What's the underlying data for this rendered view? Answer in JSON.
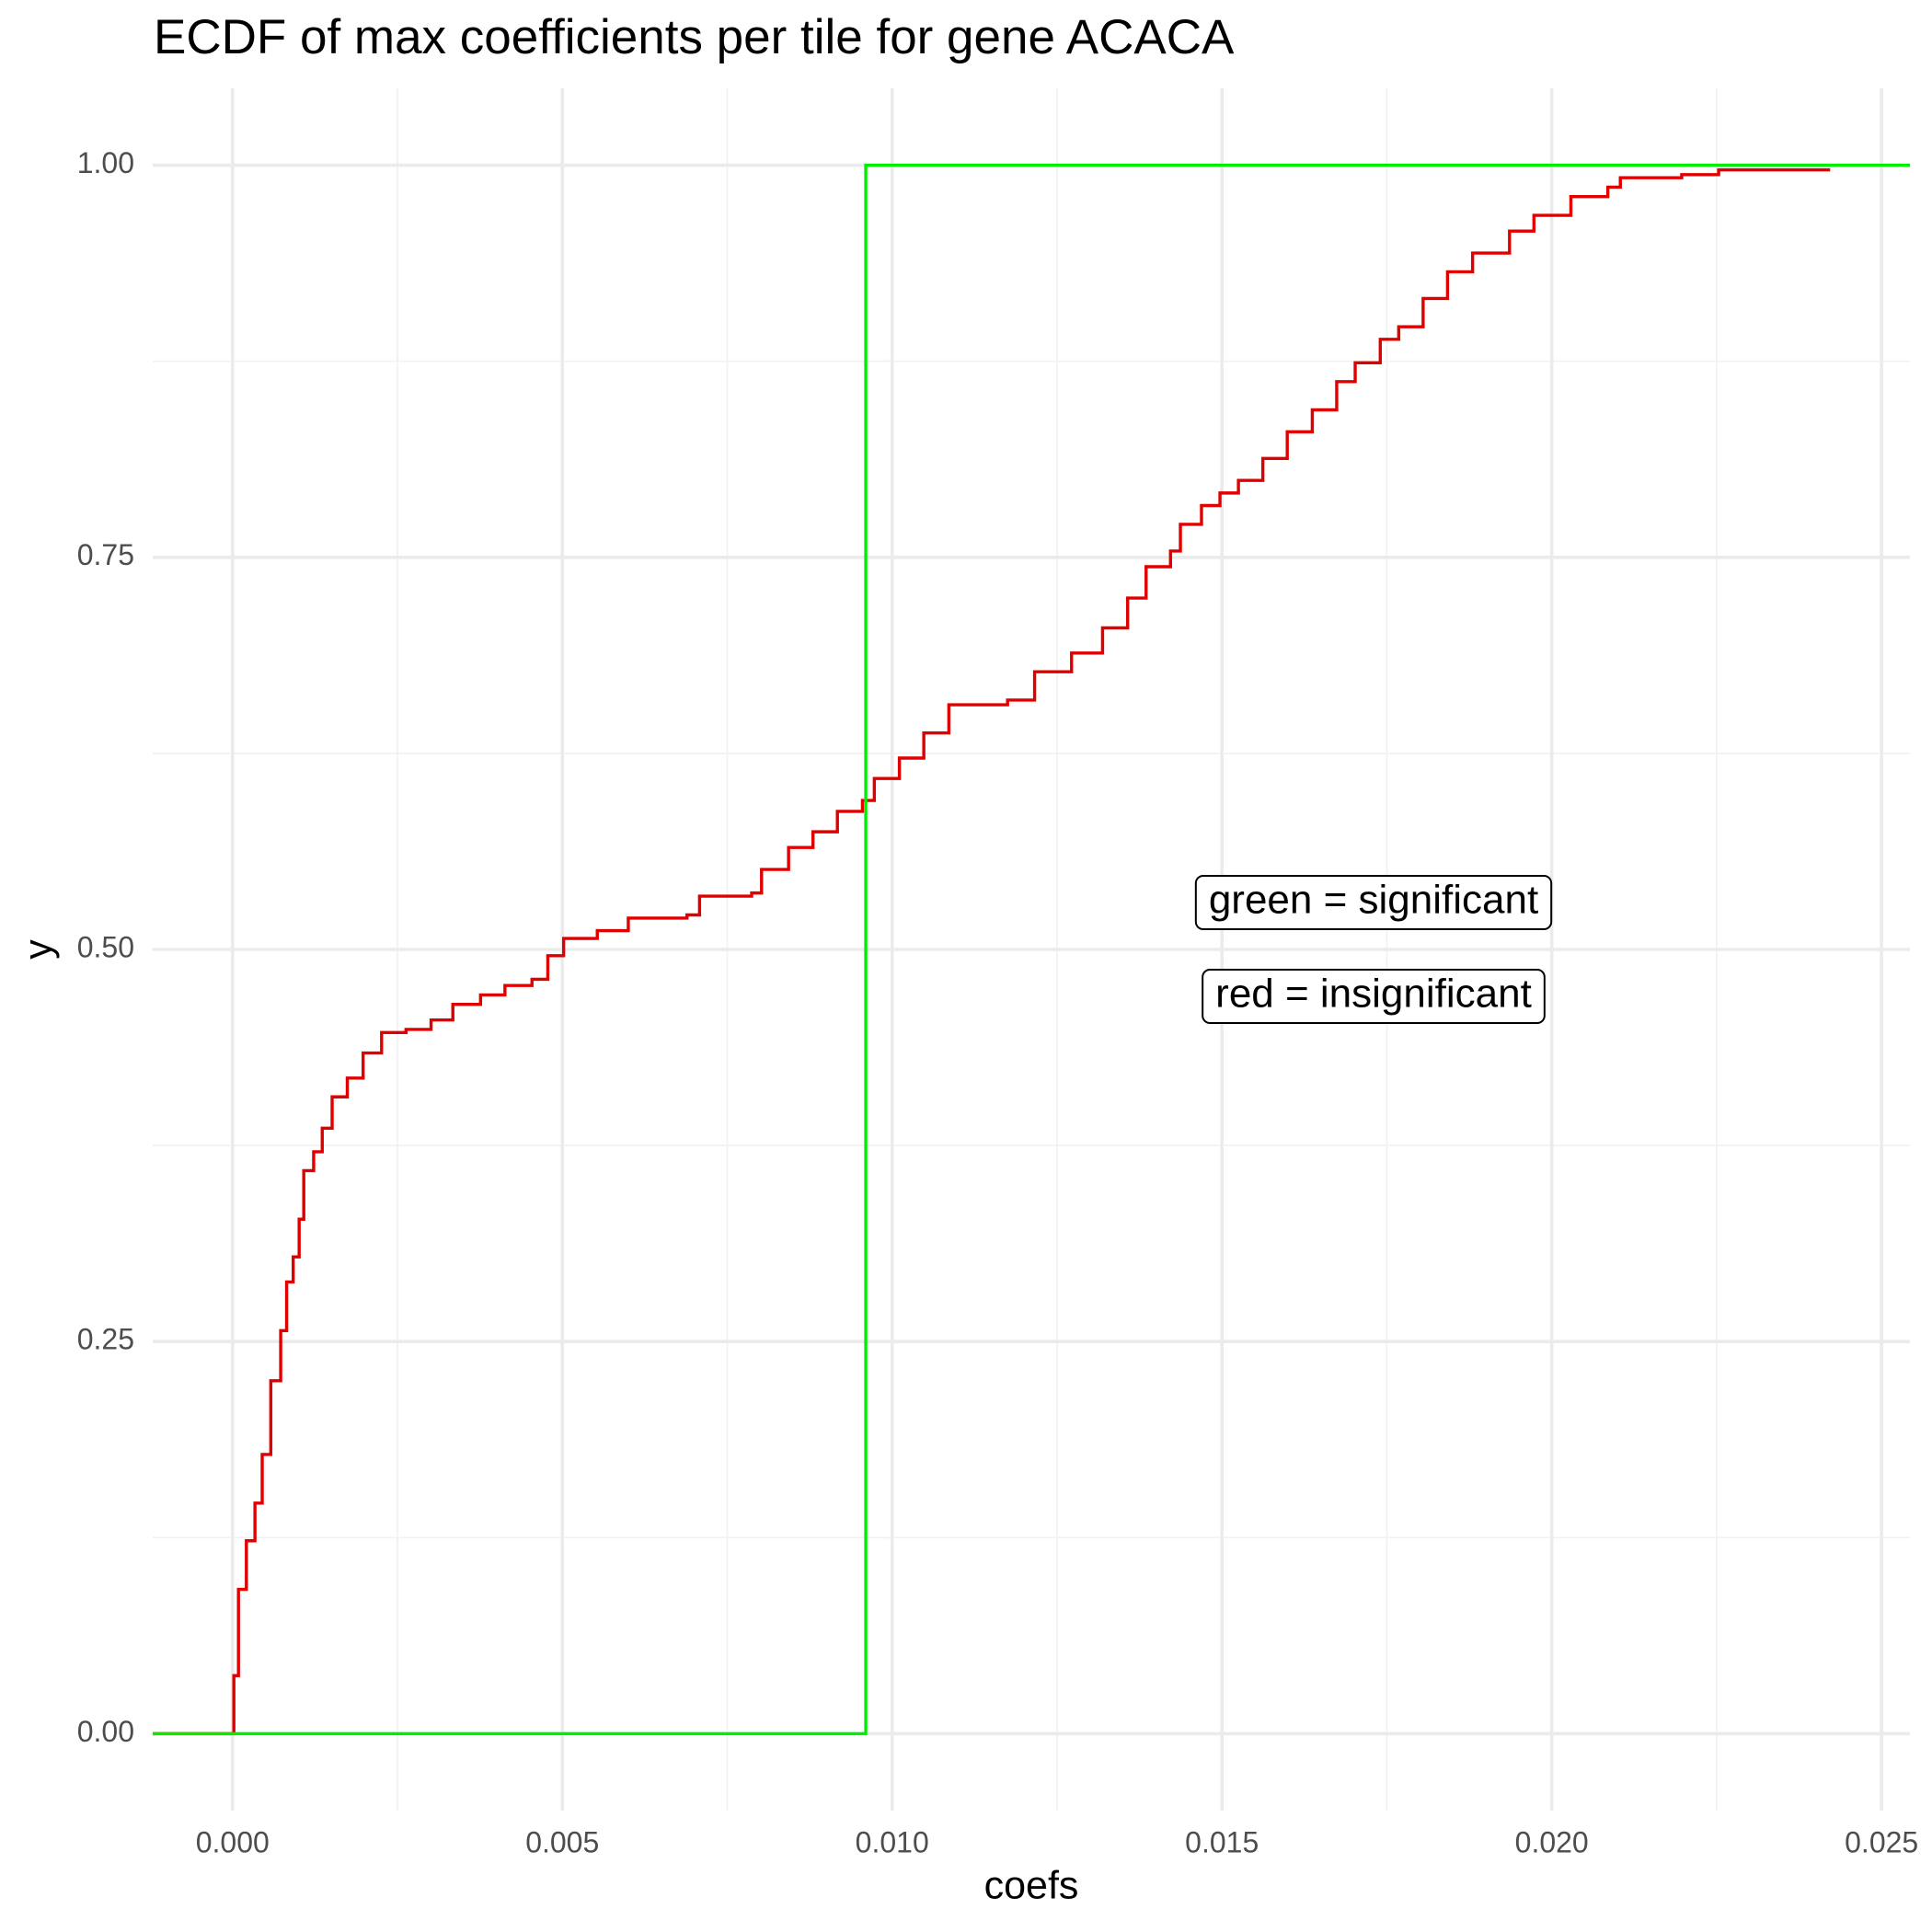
{
  "chart_data": {
    "type": "ecdf",
    "title": "ECDF of max coefficients per tile for gene ACACA",
    "x_label": "coefs",
    "y_label": "y",
    "xlim": [
      -0.00121,
      0.02543
    ],
    "ylim": [
      -0.049,
      1.049
    ],
    "xticks": [
      {
        "value": 0,
        "label": "0.000"
      },
      {
        "value": 0.005,
        "label": "0.005"
      },
      {
        "value": 0.01,
        "label": "0.010"
      },
      {
        "value": 0.015,
        "label": "0.015"
      },
      {
        "value": 0.02,
        "label": "0.020"
      },
      {
        "value": 0.025,
        "label": "0.025"
      }
    ],
    "yticks": [
      {
        "value": 0,
        "label": "0.00"
      },
      {
        "value": 0.25,
        "label": "0.25"
      },
      {
        "value": 0.5,
        "label": "0.50"
      },
      {
        "value": 0.75,
        "label": "0.75"
      },
      {
        "value": 1,
        "label": "1.00"
      }
    ],
    "x_minor_ticks": [
      0.0025,
      0.0075,
      0.0125,
      0.0175,
      0.0225
    ],
    "y_minor_ticks": [
      0.125,
      0.375,
      0.625,
      0.875
    ],
    "grid": true,
    "annotations": [
      "green = significant",
      "red = insignificant"
    ],
    "series": [
      {
        "color": "#e00000",
        "extend": false,
        "x": [
          0,
          2e-05,
          9e-05,
          0.00021,
          0.00034,
          0.00045,
          0.00058,
          0.00073,
          0.00082,
          0.00092,
          0.00101,
          0.00108,
          0.00123,
          0.00136,
          0.00151,
          0.00174,
          0.00198,
          0.00226,
          0.00263,
          0.00301,
          0.00334,
          0.00376,
          0.00413,
          0.00454,
          0.00478,
          0.00502,
          0.00553,
          0.006,
          0.00689,
          0.00708,
          0.00787,
          0.00802,
          0.00843,
          0.0088,
          0.00917,
          0.00955,
          0.00973,
          0.01011,
          0.01048,
          0.01086,
          0.01175,
          0.01216,
          0.01272,
          0.01319,
          0.01357,
          0.01385,
          0.01422,
          0.01437,
          0.01469,
          0.01497,
          0.01525,
          0.01562,
          0.01599,
          0.01637,
          0.01674,
          0.01702,
          0.0174,
          0.01768,
          0.01805,
          0.01842,
          0.0188,
          0.01936,
          0.01973,
          0.02029,
          0.02085,
          0.02104,
          0.02197,
          0.02253,
          0.02422
        ],
        "values": [
          0,
          0.037,
          0.092,
          0.123,
          0.147,
          0.178,
          0.225,
          0.257,
          0.288,
          0.304,
          0.328,
          0.359,
          0.371,
          0.386,
          0.406,
          0.418,
          0.434,
          0.447,
          0.449,
          0.455,
          0.465,
          0.471,
          0.477,
          0.481,
          0.496,
          0.507,
          0.512,
          0.52,
          0.522,
          0.534,
          0.536,
          0.551,
          0.565,
          0.575,
          0.588,
          0.595,
          0.609,
          0.622,
          0.638,
          0.656,
          0.659,
          0.677,
          0.689,
          0.705,
          0.724,
          0.744,
          0.754,
          0.771,
          0.783,
          0.791,
          0.799,
          0.813,
          0.83,
          0.844,
          0.862,
          0.874,
          0.889,
          0.897,
          0.915,
          0.932,
          0.944,
          0.958,
          0.968,
          0.98,
          0.986,
          0.992,
          0.994,
          0.997,
          0.997
        ]
      },
      {
        "color": "#00ee00",
        "extend": true,
        "x": [
          0.0096
        ],
        "values": [
          1
        ]
      }
    ]
  }
}
